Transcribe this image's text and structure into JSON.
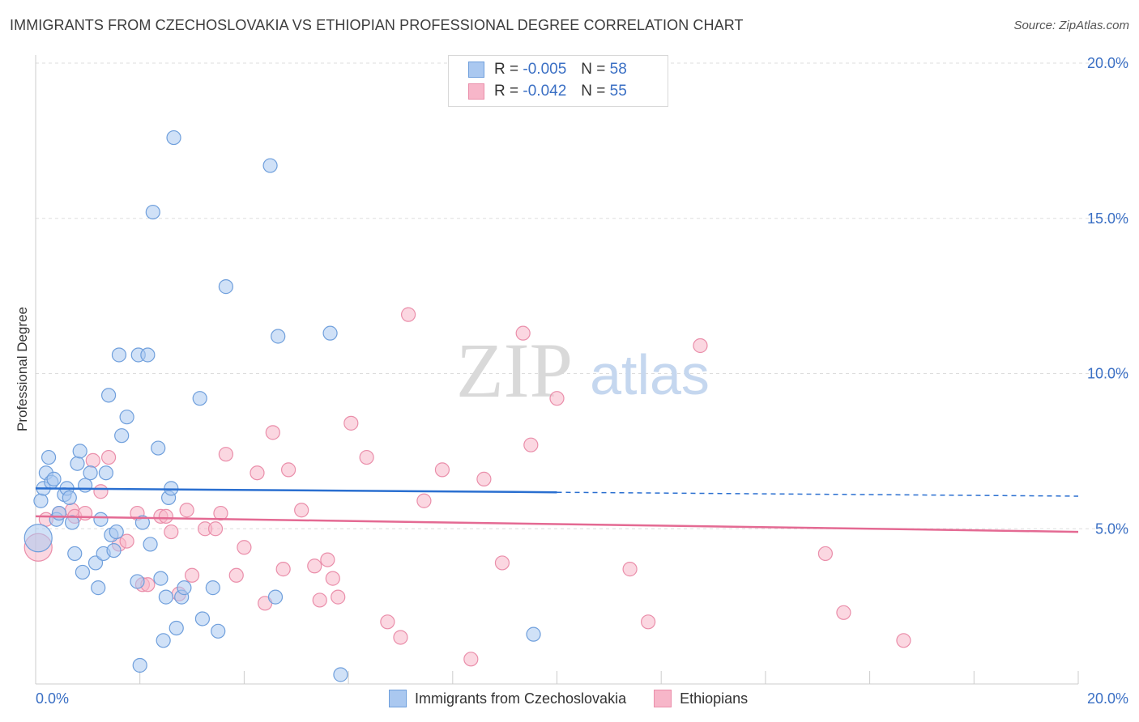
{
  "title": "IMMIGRANTS FROM CZECHOSLOVAKIA VS ETHIOPIAN PROFESSIONAL DEGREE CORRELATION CHART",
  "source": "Source: ZipAtlas.com",
  "watermark": {
    "zip": "ZIP",
    "atlas": "atlas"
  },
  "legend": {
    "rows": [
      {
        "r_label": "R = ",
        "r_value": "-0.005",
        "n_label": "N = ",
        "n_value": "58"
      },
      {
        "r_label": "R = ",
        "r_value": "-0.042",
        "n_label": "N = ",
        "n_value": "55"
      }
    ]
  },
  "bottom_legend": [
    "Immigrants from Czechoslovakia",
    "Ethiopians"
  ],
  "colors": {
    "blue_fill": "#aac8f0",
    "blue_stroke": "#6f9fdc",
    "blue_line": "#2a6fd0",
    "pink_fill": "#f7b6c9",
    "pink_stroke": "#ea8eaa",
    "pink_line": "#e46a93",
    "tick_label": "#3a6fc4",
    "grid": "#dddddd"
  },
  "chart_data": {
    "type": "scatter",
    "title": "IMMIGRANTS FROM CZECHOSLOVAKIA VS ETHIOPIAN PROFESSIONAL DEGREE CORRELATION CHART",
    "xlabel": "",
    "ylabel": "Professional Degree",
    "xlim": [
      0,
      20
    ],
    "ylim": [
      0,
      20
    ],
    "x_tick_labels": [
      "0.0%",
      "20.0%"
    ],
    "y_ticks": [
      5,
      10,
      15,
      20
    ],
    "y_tick_labels": [
      "5.0%",
      "10.0%",
      "15.0%",
      "20.0%"
    ],
    "series": [
      {
        "name": "Immigrants from Czechoslovakia",
        "color": "blue",
        "trend": {
          "x": [
            0,
            20
          ],
          "y": [
            6.3,
            6.05
          ],
          "solid_until_x": 10
        },
        "points": [
          [
            0.05,
            4.7,
            16
          ],
          [
            0.1,
            5.9,
            10
          ],
          [
            0.15,
            6.3,
            9
          ],
          [
            0.2,
            6.8,
            8
          ],
          [
            0.25,
            7.3,
            8
          ],
          [
            0.3,
            6.5,
            8
          ],
          [
            0.35,
            6.6,
            8
          ],
          [
            0.4,
            5.3,
            8
          ],
          [
            0.45,
            5.5,
            8
          ],
          [
            0.55,
            6.1,
            8
          ],
          [
            0.6,
            6.3,
            8
          ],
          [
            0.65,
            6.0,
            8
          ],
          [
            0.7,
            5.2,
            8
          ],
          [
            0.75,
            4.2,
            8
          ],
          [
            0.8,
            7.1,
            8
          ],
          [
            0.85,
            7.5,
            8
          ],
          [
            0.9,
            3.6,
            8
          ],
          [
            0.95,
            6.4,
            8
          ],
          [
            1.05,
            6.8,
            8
          ],
          [
            1.15,
            3.9,
            8
          ],
          [
            1.2,
            3.1,
            8
          ],
          [
            1.25,
            5.3,
            8
          ],
          [
            1.3,
            4.2,
            8
          ],
          [
            1.35,
            6.8,
            8
          ],
          [
            1.4,
            9.3,
            8
          ],
          [
            1.45,
            4.8,
            8
          ],
          [
            1.5,
            4.3,
            8
          ],
          [
            1.55,
            4.9,
            8
          ],
          [
            1.6,
            10.6,
            8
          ],
          [
            1.65,
            8.0,
            8
          ],
          [
            1.75,
            8.6,
            8
          ],
          [
            1.95,
            3.3,
            8
          ],
          [
            1.97,
            10.6,
            8
          ],
          [
            2.0,
            0.6,
            8
          ],
          [
            2.05,
            5.2,
            8
          ],
          [
            2.15,
            10.6,
            8
          ],
          [
            2.2,
            4.5,
            8
          ],
          [
            2.25,
            15.2,
            8
          ],
          [
            2.35,
            7.6,
            8
          ],
          [
            2.4,
            3.4,
            8
          ],
          [
            2.45,
            1.4,
            8
          ],
          [
            2.5,
            2.8,
            8
          ],
          [
            2.55,
            6.0,
            8
          ],
          [
            2.6,
            6.3,
            8
          ],
          [
            2.65,
            17.6,
            8
          ],
          [
            2.7,
            1.8,
            8
          ],
          [
            2.8,
            2.8,
            8
          ],
          [
            2.85,
            3.1,
            8
          ],
          [
            3.15,
            9.2,
            8
          ],
          [
            3.2,
            2.1,
            8
          ],
          [
            3.4,
            3.1,
            8
          ],
          [
            3.5,
            1.7,
            8
          ],
          [
            3.65,
            12.8,
            8
          ],
          [
            4.5,
            16.7,
            8
          ],
          [
            4.6,
            2.8,
            8
          ],
          [
            4.65,
            11.2,
            8
          ],
          [
            5.65,
            11.3,
            8
          ],
          [
            5.85,
            0.3,
            8
          ],
          [
            9.55,
            1.6,
            8
          ]
        ]
      },
      {
        "name": "Ethiopians",
        "color": "pink",
        "trend": {
          "x": [
            0,
            20
          ],
          "y": [
            5.4,
            4.9
          ],
          "solid_until_x": 20
        },
        "points": [
          [
            0.05,
            4.4,
            16
          ],
          [
            0.2,
            5.3,
            8
          ],
          [
            0.45,
            5.5,
            8
          ],
          [
            0.7,
            5.6,
            8
          ],
          [
            0.75,
            5.4,
            8
          ],
          [
            0.95,
            5.5,
            8
          ],
          [
            1.1,
            7.2,
            8
          ],
          [
            1.25,
            6.2,
            8
          ],
          [
            1.4,
            7.3,
            8
          ],
          [
            1.6,
            4.5,
            8
          ],
          [
            1.75,
            4.6,
            8
          ],
          [
            1.95,
            5.5,
            8
          ],
          [
            2.05,
            3.2,
            8
          ],
          [
            2.15,
            3.2,
            8
          ],
          [
            2.4,
            5.4,
            8
          ],
          [
            2.5,
            5.4,
            8
          ],
          [
            2.6,
            4.9,
            8
          ],
          [
            2.75,
            2.9,
            8
          ],
          [
            2.9,
            5.6,
            8
          ],
          [
            3.0,
            3.5,
            8
          ],
          [
            3.25,
            5.0,
            8
          ],
          [
            3.45,
            5.0,
            8
          ],
          [
            3.55,
            5.5,
            8
          ],
          [
            3.65,
            7.4,
            8
          ],
          [
            3.85,
            3.5,
            8
          ],
          [
            4.0,
            4.4,
            8
          ],
          [
            4.25,
            6.8,
            8
          ],
          [
            4.4,
            2.6,
            8
          ],
          [
            4.55,
            8.1,
            8
          ],
          [
            4.75,
            3.7,
            8
          ],
          [
            4.85,
            6.9,
            8
          ],
          [
            5.1,
            5.6,
            8
          ],
          [
            5.35,
            3.8,
            8
          ],
          [
            5.45,
            2.7,
            8
          ],
          [
            5.6,
            4.0,
            8
          ],
          [
            5.7,
            3.4,
            8
          ],
          [
            5.8,
            2.8,
            8
          ],
          [
            6.05,
            8.4,
            8
          ],
          [
            6.35,
            7.3,
            8
          ],
          [
            6.75,
            2.0,
            8
          ],
          [
            7.0,
            1.5,
            8
          ],
          [
            7.15,
            11.9,
            8
          ],
          [
            7.45,
            5.9,
            8
          ],
          [
            7.8,
            6.9,
            8
          ],
          [
            8.35,
            0.8,
            8
          ],
          [
            8.6,
            6.6,
            8
          ],
          [
            8.95,
            3.9,
            8
          ],
          [
            9.35,
            11.3,
            8
          ],
          [
            9.5,
            7.7,
            8
          ],
          [
            10.0,
            9.2,
            8
          ],
          [
            11.4,
            3.7,
            8
          ],
          [
            11.75,
            2.0,
            8
          ],
          [
            12.75,
            10.9,
            8
          ],
          [
            15.15,
            4.2,
            8
          ],
          [
            15.5,
            2.3,
            8
          ],
          [
            16.65,
            1.4,
            8
          ]
        ]
      }
    ]
  }
}
